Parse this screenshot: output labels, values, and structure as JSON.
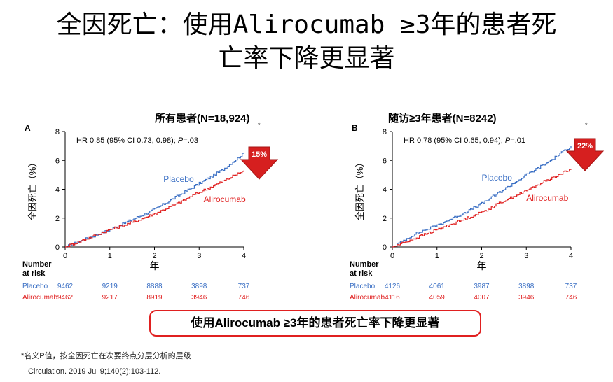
{
  "title_line1": "全因死亡：使用Alirocumab ≥3年的患者死",
  "title_line2": "亡率下降更显著",
  "callout": "使用Alirocumab ≥3年的患者死亡率下降更显著",
  "footnote": "*名义P值，按全因死亡在次要终点分层分析的层级",
  "citation": "Circulation. 2019 Jul 9;140(2):103-112.",
  "chart_data": [
    {
      "type": "line",
      "panel": "A",
      "title": "所有患者(N=18,924)",
      "asterisk": "*",
      "hr_prefix": "HR 0.85 (95% CI 0.73, 0.98); ",
      "hr_p": "P",
      "hr_suffix": "=.03",
      "xlabel": "年",
      "ylabel": "全因死亡（%）",
      "xlim": [
        0,
        4
      ],
      "ylim": [
        0,
        8
      ],
      "xticks": [
        "0",
        "1",
        "2",
        "3",
        "4"
      ],
      "yticks": [
        "0",
        "2",
        "4",
        "6",
        "8"
      ],
      "reduction_label": "15%",
      "series": [
        {
          "name": "Placebo",
          "color": "#3a6fc4",
          "x": [
            0,
            0.5,
            1,
            1.5,
            2,
            2.5,
            3,
            3.5,
            4
          ],
          "y": [
            0,
            0.6,
            1.2,
            1.9,
            2.6,
            3.5,
            4.4,
            5.3,
            6.5
          ]
        },
        {
          "name": "Alirocumab",
          "color": "#e02020",
          "x": [
            0,
            0.5,
            1,
            1.5,
            2,
            2.5,
            3,
            3.5,
            4
          ],
          "y": [
            0,
            0.6,
            1.2,
            1.7,
            2.3,
            3.0,
            3.8,
            4.5,
            5.3
          ]
        }
      ],
      "risk_table": {
        "header": [
          "Number",
          "at risk"
        ],
        "rows": [
          {
            "label": "Placebo",
            "color": "#3a6fc4",
            "values": [
              "9462",
              "9219",
              "8888",
              "3898",
              "737"
            ]
          },
          {
            "label": "Alirocumab",
            "color": "#e02020",
            "values": [
              "9462",
              "9217",
              "8919",
              "3946",
              "746"
            ]
          }
        ]
      }
    },
    {
      "type": "line",
      "panel": "B",
      "title": "随访≥3年患者(N=8242)",
      "asterisk": "*",
      "hr_prefix": "HR 0.78 (95% CI 0.65, 0.94); ",
      "hr_p": "P",
      "hr_suffix": "=.01",
      "xlabel": "年",
      "ylabel": "全因死亡（%）",
      "xlim": [
        0,
        4
      ],
      "ylim": [
        0,
        8
      ],
      "xticks": [
        "0",
        "1",
        "2",
        "3",
        "4"
      ],
      "yticks": [
        "0",
        "2",
        "4",
        "6",
        "8"
      ],
      "reduction_label": "22%",
      "series": [
        {
          "name": "Placebo",
          "color": "#3a6fc4",
          "x": [
            0,
            0.5,
            1,
            1.5,
            2,
            2.5,
            3,
            3.5,
            4
          ],
          "y": [
            0,
            0.9,
            1.5,
            2.2,
            3.0,
            4.0,
            5.0,
            5.9,
            7.0
          ]
        },
        {
          "name": "Alirocumab",
          "color": "#e02020",
          "x": [
            0,
            0.5,
            1,
            1.5,
            2,
            2.5,
            3,
            3.5,
            4
          ],
          "y": [
            0,
            0.6,
            1.2,
            1.8,
            2.4,
            3.2,
            3.9,
            4.7,
            5.4
          ]
        }
      ],
      "risk_table": {
        "header": [
          "Number",
          "at risk"
        ],
        "rows": [
          {
            "label": "Placebo",
            "color": "#3a6fc4",
            "values": [
              "4126",
              "4061",
              "3987",
              "3898",
              "737"
            ]
          },
          {
            "label": "Alirocumab",
            "color": "#e02020",
            "values": [
              "4116",
              "4059",
              "4007",
              "3946",
              "746"
            ]
          }
        ]
      }
    }
  ]
}
